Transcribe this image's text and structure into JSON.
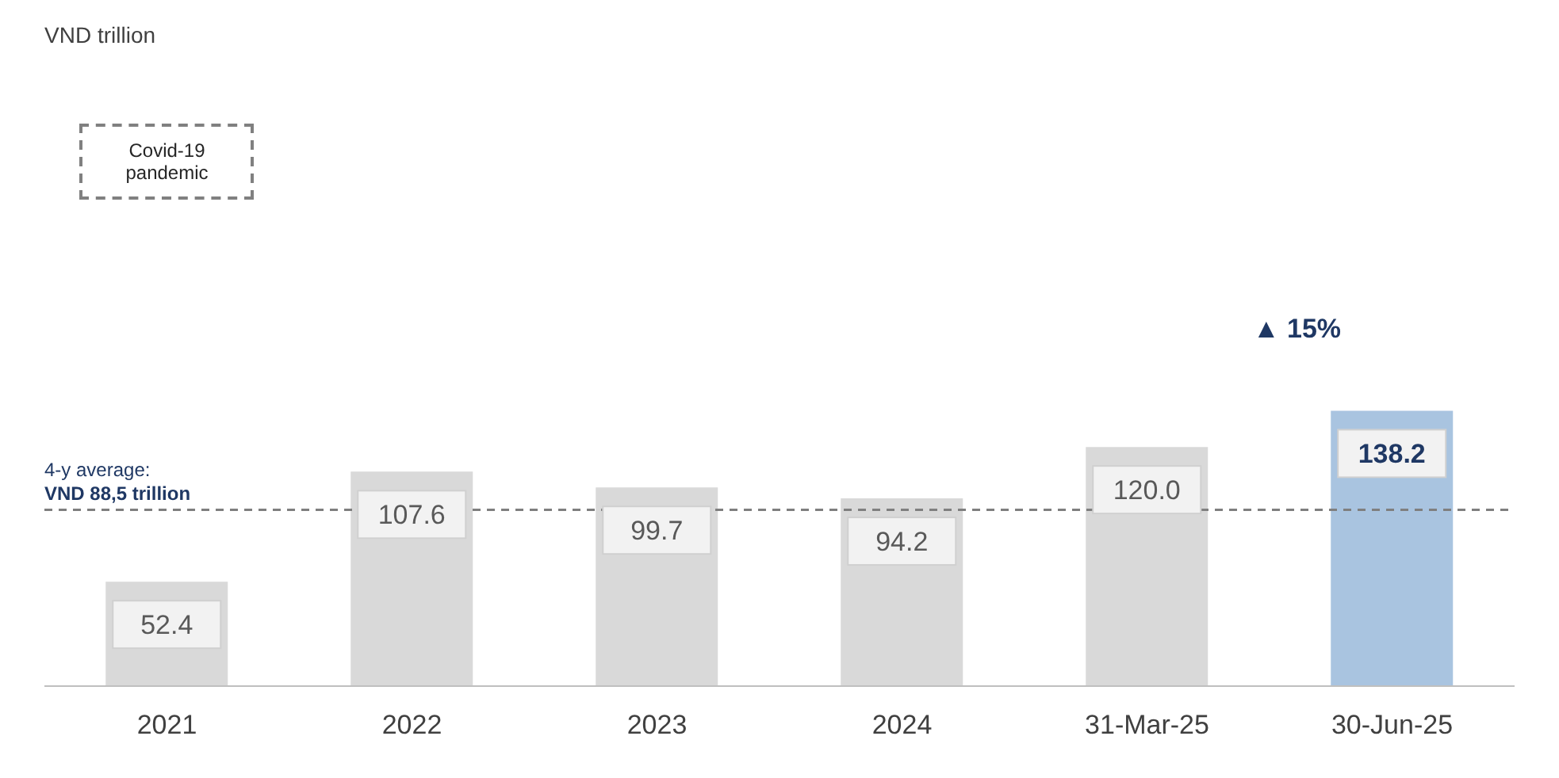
{
  "chart_data": {
    "type": "bar",
    "categories": [
      "2021",
      "2022",
      "2023",
      "2024",
      "31-Mar-25",
      "30-Jun-25"
    ],
    "values": [
      52.4,
      107.6,
      99.7,
      94.2,
      120.0,
      138.2
    ],
    "colors": [
      "#d9d9d9",
      "#d9d9d9",
      "#d9d9d9",
      "#d9d9d9",
      "#d9d9d9",
      "#a9c4e0"
    ],
    "value_labels": [
      "52.4",
      "107.6",
      "99.7",
      "94.2",
      "120.0",
      "138.2"
    ],
    "grid": false,
    "legend": false,
    "ref_lines": [
      {
        "axis": "y",
        "value": 88.5,
        "label": "4-y average:\nVND 88,5 trillion",
        "color": "#7f7f7f",
        "line_style": "dashed"
      }
    ],
    "annotations": [
      "VND trillion",
      "Covid-19 pandemic",
      "▲ 15%"
    ]
  }
}
